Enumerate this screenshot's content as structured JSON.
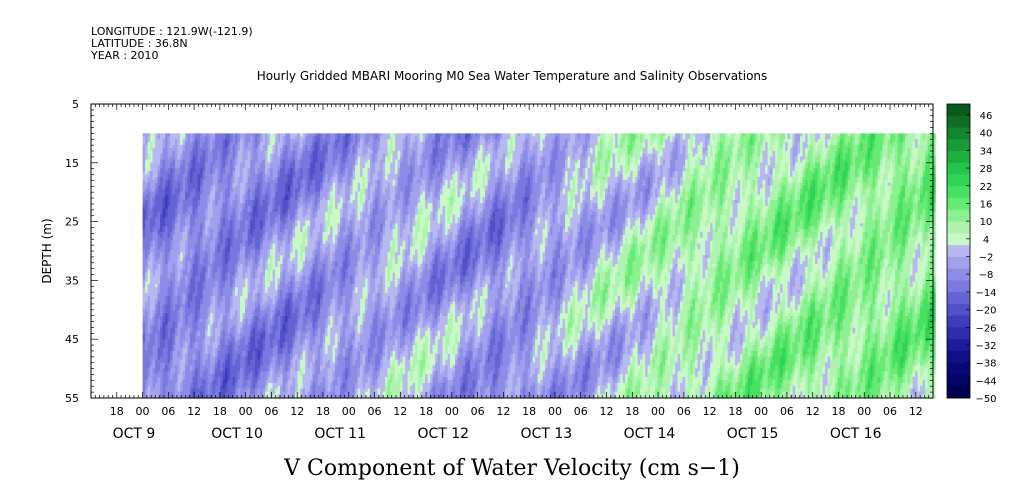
{
  "header": {
    "longitude": "LONGITUDE : 121.9W(-121.9)",
    "latitude": "LATITUDE : 36.8N",
    "year": "YEAR : 2010"
  },
  "chart_data": {
    "type": "heatmap",
    "title": "Hourly Gridded MBARI Mooring M0 Sea Water Temperature and Salinity Observations",
    "xlabel": "V Component of Water Velocity (cm s−1)",
    "ylabel": "DEPTH (m)",
    "y_ticks": [
      "5",
      "15",
      "25",
      "35",
      "45",
      "55"
    ],
    "ylim": [
      55,
      5
    ],
    "x_hour_ticks": [
      "18",
      "00",
      "06",
      "12",
      "18",
      "00",
      "06",
      "12",
      "18",
      "00",
      "06",
      "12",
      "18",
      "00",
      "06",
      "12",
      "18",
      "00",
      "06",
      "12",
      "18",
      "00",
      "06",
      "12",
      "18",
      "00",
      "06",
      "12",
      "18",
      "00",
      "06",
      "12"
    ],
    "x_day_labels": [
      "OCT  9",
      "OCT 10",
      "OCT 11",
      "OCT 12",
      "OCT 13",
      "OCT 14",
      "OCT 15",
      "OCT 16"
    ],
    "x_range_hours": [
      "OCT 8 12:00",
      "OCT 16 16:00"
    ],
    "data_start": "OCT 9 00:00",
    "data_depth_range": [
      10,
      55
    ],
    "colorbar": {
      "labels": [
        "46",
        "40",
        "34",
        "28",
        "22",
        "16",
        "10",
        "4",
        "−2",
        "−8",
        "−14",
        "−20",
        "−26",
        "−32",
        "−38",
        "−44",
        "−50"
      ],
      "range": [
        -50,
        50
      ],
      "colors_high_to_low": [
        "#0a5a1e",
        "#0f6e26",
        "#138430",
        "#179a38",
        "#1bb040",
        "#22c44a",
        "#30d454",
        "#48e060",
        "#66ea74",
        "#8af090",
        "#aef4b0",
        "#c8f8c6",
        "#b8b8f0",
        "#a0a0ec",
        "#8c8ce6",
        "#7878de",
        "#6464d4",
        "#5050c8",
        "#3c3cbc",
        "#2c2cae",
        "#1c1c9c",
        "#10108a",
        "#080878",
        "#040466",
        "#000050"
      ]
    },
    "field_description_by_day": [
      {
        "day": "OCT 9",
        "dominant": "blue",
        "mean_v": -9
      },
      {
        "day": "OCT 10",
        "dominant": "blue",
        "mean_v": -7
      },
      {
        "day": "OCT 11",
        "dominant": "mixed",
        "mean_v": -2
      },
      {
        "day": "OCT 12",
        "dominant": "blue",
        "mean_v": -8
      },
      {
        "day": "OCT 13",
        "dominant": "mixed",
        "mean_v": 1
      },
      {
        "day": "OCT 14",
        "dominant": "green",
        "mean_v": 8
      },
      {
        "day": "OCT 15",
        "dominant": "green",
        "mean_v": 10
      },
      {
        "day": "OCT 16",
        "dominant": "green",
        "mean_v": 12
      }
    ]
  }
}
